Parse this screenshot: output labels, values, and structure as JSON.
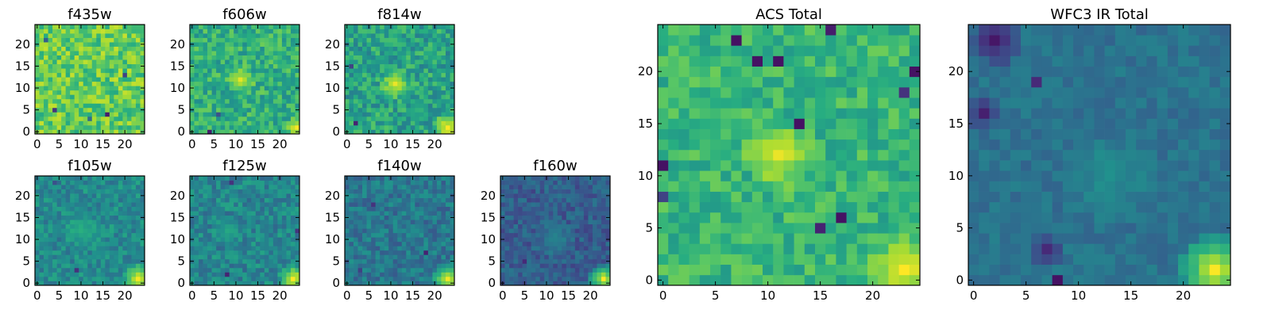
{
  "chart_data": [
    {
      "type": "heatmap",
      "title": "f435w",
      "colormap": "viridis",
      "grid_size": 25,
      "xlim": [
        -0.5,
        24.5
      ],
      "ylim": [
        -0.5,
        24.5
      ],
      "xticks": [
        "0",
        "5",
        "10",
        "15",
        "20"
      ],
      "yticks": [
        "0",
        "5",
        "10",
        "15",
        "20"
      ],
      "value_range": [
        0,
        1
      ],
      "mean_level": 0.76,
      "texture": 0.16,
      "features": [
        {
          "x": 16,
          "y": 4,
          "v": 0.08
        },
        {
          "x": 4,
          "y": 5,
          "v": 0.15
        },
        {
          "x": 20,
          "y": 13,
          "v": 0.2
        },
        {
          "x": 2,
          "y": 21,
          "v": 0.3
        },
        {
          "x": 12,
          "y": 3,
          "v": 0.35
        }
      ]
    },
    {
      "type": "heatmap",
      "title": "f606w",
      "colormap": "viridis",
      "grid_size": 25,
      "xlim": [
        -0.5,
        24.5
      ],
      "ylim": [
        -0.5,
        24.5
      ],
      "xticks": [
        "0",
        "5",
        "10",
        "15",
        "20"
      ],
      "yticks": [
        "0",
        "5",
        "10",
        "15",
        "20"
      ],
      "value_range": [
        0,
        1
      ],
      "mean_level": 0.63,
      "texture": 0.15,
      "features": [
        {
          "x": 11,
          "y": 12,
          "v": 0.95,
          "r": 3
        },
        {
          "x": 24,
          "y": 1,
          "v": 1.0,
          "r": 2
        },
        {
          "x": 4,
          "y": 0,
          "v": 0.08
        },
        {
          "x": 6,
          "y": 4,
          "v": 0.25
        }
      ]
    },
    {
      "type": "heatmap",
      "title": "f814w",
      "colormap": "viridis",
      "grid_size": 25,
      "xlim": [
        -0.5,
        24.5
      ],
      "ylim": [
        -0.5,
        24.5
      ],
      "xticks": [
        "0",
        "5",
        "10",
        "15",
        "20"
      ],
      "yticks": [
        "0",
        "5",
        "10",
        "15",
        "20"
      ],
      "value_range": [
        0,
        1
      ],
      "mean_level": 0.58,
      "texture": 0.16,
      "features": [
        {
          "x": 11,
          "y": 11,
          "v": 0.97,
          "r": 3
        },
        {
          "x": 23,
          "y": 1,
          "v": 1.0,
          "r": 3
        },
        {
          "x": 2,
          "y": 2,
          "v": 0.1
        },
        {
          "x": 1,
          "y": 15,
          "v": 0.2
        }
      ]
    },
    {
      "type": "heatmap",
      "title": "f105w",
      "colormap": "viridis",
      "grid_size": 25,
      "xlim": [
        -0.5,
        24.5
      ],
      "ylim": [
        -0.5,
        24.5
      ],
      "xticks": [
        "0",
        "5",
        "10",
        "15",
        "20"
      ],
      "yticks": [
        "0",
        "5",
        "10",
        "15",
        "20"
      ],
      "value_range": [
        0,
        1
      ],
      "mean_level": 0.48,
      "texture": 0.12,
      "features": [
        {
          "x": 23,
          "y": 1,
          "v": 1.0,
          "r": 3
        },
        {
          "x": 10,
          "y": 12,
          "v": 0.62,
          "r": 4
        },
        {
          "x": 9,
          "y": 3,
          "v": 0.15
        },
        {
          "x": 4,
          "y": 23,
          "v": 0.25
        }
      ]
    },
    {
      "type": "heatmap",
      "title": "f125w",
      "colormap": "viridis",
      "grid_size": 25,
      "xlim": [
        -0.5,
        24.5
      ],
      "ylim": [
        -0.5,
        24.5
      ],
      "xticks": [
        "0",
        "5",
        "10",
        "15",
        "20"
      ],
      "yticks": [
        "0",
        "5",
        "10",
        "15",
        "20"
      ],
      "value_range": [
        0,
        1
      ],
      "mean_level": 0.46,
      "texture": 0.13,
      "features": [
        {
          "x": 23,
          "y": 1,
          "v": 1.0,
          "r": 3
        },
        {
          "x": 8,
          "y": 12,
          "v": 0.6,
          "r": 3
        },
        {
          "x": 8,
          "y": 2,
          "v": 0.1
        },
        {
          "x": 9,
          "y": 23,
          "v": 0.15
        },
        {
          "x": 24,
          "y": 12,
          "v": 0.15
        }
      ]
    },
    {
      "type": "heatmap",
      "title": "f140w",
      "colormap": "viridis",
      "grid_size": 25,
      "xlim": [
        -0.5,
        24.5
      ],
      "ylim": [
        -0.5,
        24.5
      ],
      "xticks": [
        "0",
        "5",
        "10",
        "15",
        "20"
      ],
      "yticks": [
        "0",
        "5",
        "10",
        "15",
        "20"
      ],
      "value_range": [
        0,
        1
      ],
      "mean_level": 0.4,
      "texture": 0.12,
      "features": [
        {
          "x": 23,
          "y": 1,
          "v": 1.0,
          "r": 3
        },
        {
          "x": 18,
          "y": 7,
          "v": 0.1
        },
        {
          "x": 6,
          "y": 18,
          "v": 0.15
        },
        {
          "x": 3,
          "y": 3,
          "v": 0.2
        }
      ]
    },
    {
      "type": "heatmap",
      "title": "f160w",
      "colormap": "viridis",
      "grid_size": 25,
      "xlim": [
        -0.5,
        24.5
      ],
      "ylim": [
        -0.5,
        24.5
      ],
      "xticks": [
        "0",
        "5",
        "10",
        "15",
        "20"
      ],
      "yticks": [
        "0",
        "5",
        "10",
        "15",
        "20"
      ],
      "value_range": [
        0,
        1
      ],
      "mean_level": 0.3,
      "texture": 0.1,
      "features": [
        {
          "x": 23,
          "y": 1,
          "v": 1.0,
          "r": 3
        },
        {
          "x": 12,
          "y": 10,
          "v": 0.45,
          "r": 4
        },
        {
          "x": 5,
          "y": 5,
          "v": 0.12
        }
      ]
    },
    {
      "type": "heatmap",
      "title": "ACS Total",
      "colormap": "viridis",
      "grid_size": 25,
      "xlim": [
        -0.5,
        24.5
      ],
      "ylim": [
        -0.5,
        24.5
      ],
      "xticks": [
        "0",
        "5",
        "10",
        "15",
        "20"
      ],
      "yticks": [
        "0",
        "5",
        "10",
        "15",
        "20"
      ],
      "value_range": [
        0,
        1
      ],
      "mean_level": 0.66,
      "texture": 0.12,
      "features": [
        {
          "x": 11,
          "y": 12,
          "v": 0.97,
          "r": 3
        },
        {
          "x": 23,
          "y": 1,
          "v": 1.0,
          "r": 3
        },
        {
          "x": 0,
          "y": 8,
          "v": 0.2
        },
        {
          "x": 0,
          "y": 11,
          "v": 0.05
        },
        {
          "x": 7,
          "y": 23,
          "v": 0.05
        },
        {
          "x": 9,
          "y": 21,
          "v": 0.05
        },
        {
          "x": 11,
          "y": 21,
          "v": 0.05
        },
        {
          "x": 13,
          "y": 15,
          "v": 0.05
        },
        {
          "x": 17,
          "y": 6,
          "v": 0.05
        },
        {
          "x": 15,
          "y": 5,
          "v": 0.1
        },
        {
          "x": 24,
          "y": 20,
          "v": 0.05
        },
        {
          "x": 23,
          "y": 18,
          "v": 0.15
        },
        {
          "x": 16,
          "y": 24,
          "v": 0.08
        }
      ]
    },
    {
      "type": "heatmap",
      "title": "WFC3 IR Total",
      "colormap": "viridis",
      "grid_size": 25,
      "xlim": [
        -0.5,
        24.5
      ],
      "ylim": [
        -0.5,
        24.5
      ],
      "xticks": [
        "0",
        "5",
        "10",
        "15",
        "20"
      ],
      "yticks": [
        "0",
        "5",
        "10",
        "15",
        "20"
      ],
      "value_range": [
        0,
        1
      ],
      "mean_level": 0.38,
      "texture": 0.06,
      "features": [
        {
          "x": 23,
          "y": 1,
          "v": 1.0,
          "r": 3
        },
        {
          "x": 13,
          "y": 10,
          "v": 0.5,
          "r": 4
        },
        {
          "x": 2,
          "y": 23,
          "v": 0.05,
          "r": 2
        },
        {
          "x": 1,
          "y": 16,
          "v": 0.1,
          "r": 1
        },
        {
          "x": 6,
          "y": 19,
          "v": 0.12
        },
        {
          "x": 7,
          "y": 3,
          "v": 0.1,
          "r": 1
        },
        {
          "x": 8,
          "y": 0,
          "v": 0.05
        }
      ]
    }
  ]
}
